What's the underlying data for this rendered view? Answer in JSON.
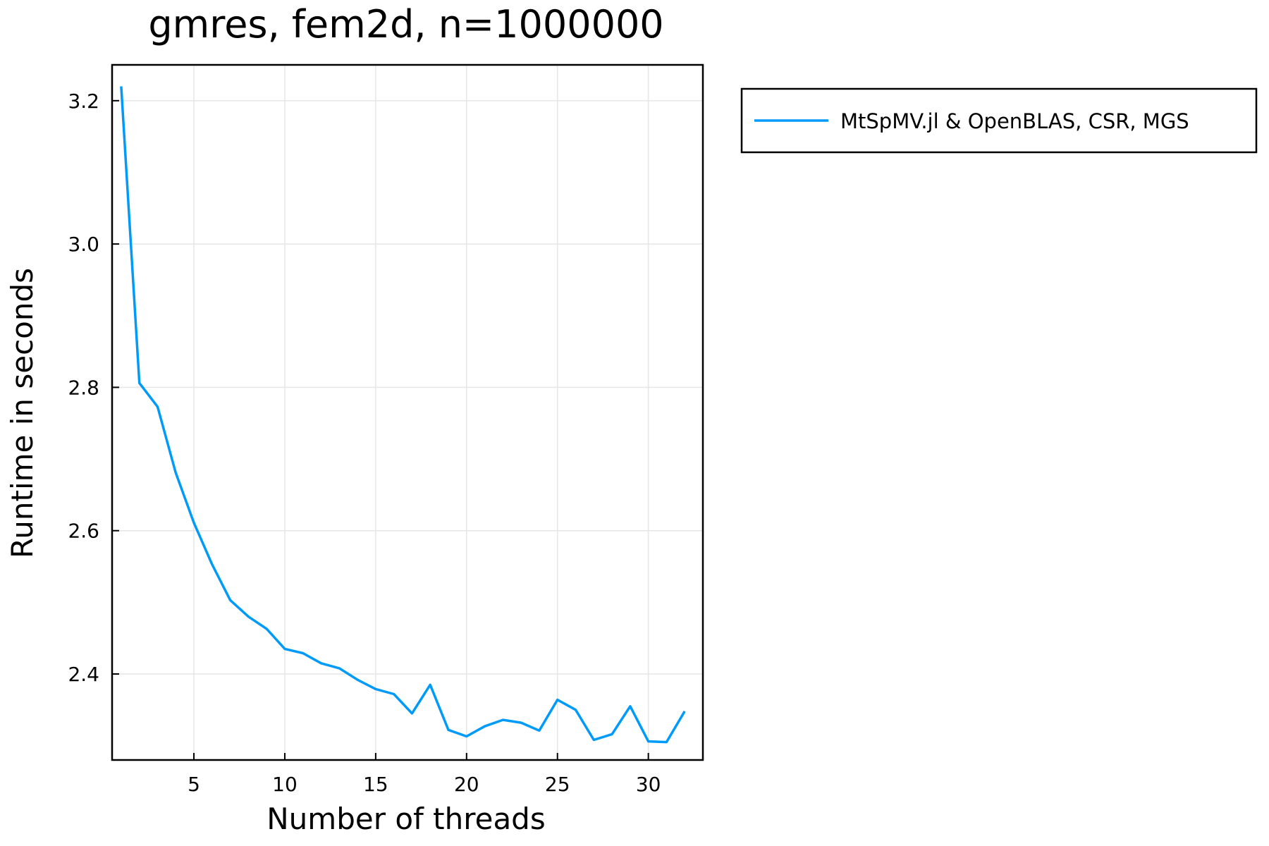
{
  "chart_data": {
    "type": "line",
    "title": "gmres, fem2d, n=1000000",
    "xlabel": "Number of threads",
    "ylabel": "Runtime in seconds",
    "xlim": [
      0.5,
      33
    ],
    "ylim": [
      2.28,
      3.25
    ],
    "xticks": [
      5,
      10,
      15,
      20,
      25,
      30
    ],
    "yticks": [
      2.4,
      2.6,
      2.8,
      3.0,
      3.2
    ],
    "ytick_labels": [
      "2.4",
      "2.6",
      "2.8",
      "3.0",
      "3.2"
    ],
    "grid": true,
    "legend_position": "outside-top-right",
    "series": [
      {
        "name": "MtSpMV.jl & OpenBLAS, CSR, MGS",
        "color": "#009af9",
        "x": [
          1,
          2,
          3,
          4,
          5,
          6,
          7,
          8,
          9,
          10,
          11,
          12,
          13,
          14,
          15,
          16,
          17,
          18,
          19,
          20,
          21,
          22,
          23,
          24,
          25,
          26,
          27,
          28,
          29,
          30,
          31,
          32
        ],
        "y": [
          3.22,
          2.806,
          2.773,
          2.681,
          2.611,
          2.553,
          2.503,
          2.48,
          2.463,
          2.435,
          2.429,
          2.415,
          2.408,
          2.392,
          2.379,
          2.372,
          2.345,
          2.385,
          2.322,
          2.313,
          2.327,
          2.336,
          2.332,
          2.321,
          2.364,
          2.35,
          2.308,
          2.316,
          2.355,
          2.306,
          2.305,
          2.348
        ]
      }
    ]
  }
}
